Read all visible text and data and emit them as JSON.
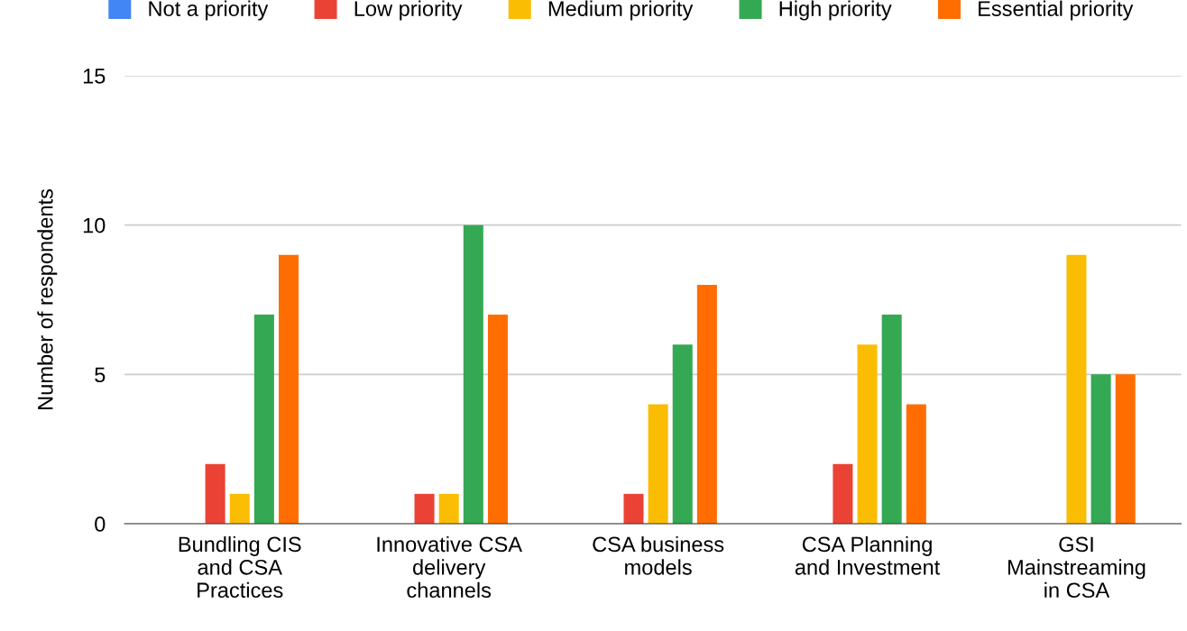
{
  "chart_data": {
    "type": "bar",
    "ylabel": "Number of respondents",
    "categories": [
      "Bundling CIS\nand CSA\nPractices",
      "Innovative CSA\ndelivery\nchannels",
      "CSA business\nmodels",
      "CSA Planning\nand Investment",
      "GSI\nMainstreaming\nin CSA"
    ],
    "series": [
      {
        "name": "Not a priority",
        "color": "#4285f4",
        "values": [
          0,
          0,
          0,
          0,
          0
        ]
      },
      {
        "name": "Low priority",
        "color": "#ea4335",
        "values": [
          2,
          1,
          1,
          2,
          0
        ]
      },
      {
        "name": "Medium priority",
        "color": "#fbbc04",
        "values": [
          1,
          1,
          4,
          6,
          9
        ]
      },
      {
        "name": "High priority",
        "color": "#34a853",
        "values": [
          7,
          10,
          6,
          7,
          5
        ]
      },
      {
        "name": "Essential priority",
        "color": "#ff6d01",
        "values": [
          9,
          7,
          8,
          4,
          5
        ]
      }
    ],
    "ylim": [
      0,
      15
    ],
    "yticks": [
      0,
      5,
      10,
      15
    ],
    "grid": "y",
    "legend": "top"
  }
}
